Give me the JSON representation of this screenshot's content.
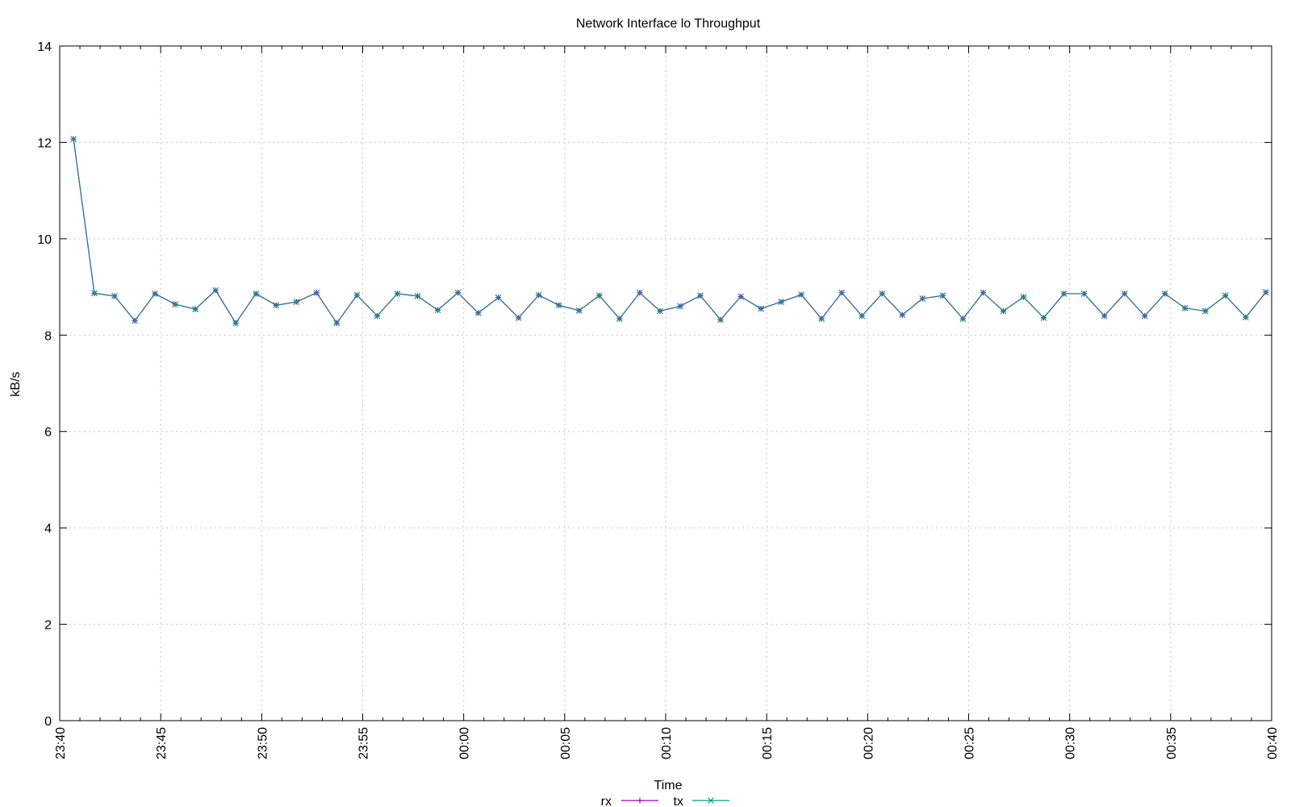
{
  "chart_data": {
    "type": "line",
    "title": "Network Interface lo Throughput",
    "xlabel": "Time",
    "ylabel": "kB/s",
    "ylim": [
      0,
      14
    ],
    "yticks": [
      0,
      2,
      4,
      6,
      8,
      10,
      12,
      14
    ],
    "x_ticks": [
      "23:40",
      "23:45",
      "23:50",
      "23:55",
      "00:00",
      "00:05",
      "00:10",
      "00:15",
      "00:20",
      "00:25",
      "00:30",
      "00:35",
      "00:40"
    ],
    "x_start": "23:40",
    "x_end": "00:40",
    "grid": true,
    "legend": "bottom-center",
    "x": [
      "23:40:41",
      "23:41:43",
      "23:42:43",
      "23:43:43",
      "23:44:43",
      "23:45:43",
      "23:46:43",
      "23:47:43",
      "23:48:43",
      "23:49:43",
      "23:50:43",
      "23:51:43",
      "23:52:43",
      "23:53:43",
      "23:54:43",
      "23:55:43",
      "23:56:43",
      "23:57:43",
      "23:58:43",
      "23:59:43",
      "00:00:43",
      "00:01:43",
      "00:02:43",
      "00:03:43",
      "00:04:43",
      "00:05:43",
      "00:06:43",
      "00:07:43",
      "00:08:43",
      "00:09:43",
      "00:10:43",
      "00:11:43",
      "00:12:43",
      "00:13:43",
      "00:14:43",
      "00:15:43",
      "00:16:43",
      "00:17:43",
      "00:18:43",
      "00:19:43",
      "00:20:43",
      "00:21:43",
      "00:22:43",
      "00:23:43",
      "00:24:43",
      "00:25:43",
      "00:26:43",
      "00:27:43",
      "00:28:43",
      "00:29:43",
      "00:30:43",
      "00:31:43",
      "00:32:43",
      "00:33:43",
      "00:34:43",
      "00:35:43",
      "00:36:43",
      "00:37:43",
      "00:38:43",
      "00:39:43"
    ],
    "series": [
      {
        "name": "rx",
        "color": "#9400d3",
        "marker": "+",
        "values": [
          12.07,
          8.87,
          8.81,
          8.3,
          8.86,
          8.64,
          8.54,
          8.93,
          8.25,
          8.86,
          8.62,
          8.69,
          8.88,
          8.25,
          8.83,
          8.4,
          8.86,
          8.81,
          8.52,
          8.88,
          8.46,
          8.78,
          8.36,
          8.83,
          8.62,
          8.51,
          8.82,
          8.34,
          8.88,
          8.5,
          8.6,
          8.82,
          8.32,
          8.8,
          8.55,
          8.69,
          8.84,
          8.34,
          8.88,
          8.4,
          8.86,
          8.42,
          8.76,
          8.82,
          8.34,
          8.88,
          8.5,
          8.79,
          8.36,
          8.86,
          8.86,
          8.4,
          8.86,
          8.4,
          8.86,
          8.56,
          8.5,
          8.82,
          8.37,
          8.89
        ]
      },
      {
        "name": "tx",
        "color": "#009e73",
        "marker": "x",
        "values": [
          12.07,
          8.87,
          8.81,
          8.3,
          8.86,
          8.64,
          8.54,
          8.93,
          8.25,
          8.86,
          8.62,
          8.69,
          8.88,
          8.25,
          8.83,
          8.4,
          8.86,
          8.81,
          8.52,
          8.88,
          8.46,
          8.78,
          8.36,
          8.83,
          8.62,
          8.51,
          8.82,
          8.34,
          8.88,
          8.5,
          8.6,
          8.82,
          8.32,
          8.8,
          8.55,
          8.69,
          8.84,
          8.34,
          8.88,
          8.4,
          8.86,
          8.42,
          8.76,
          8.82,
          8.34,
          8.88,
          8.5,
          8.79,
          8.36,
          8.86,
          8.86,
          8.4,
          8.86,
          8.4,
          8.86,
          8.56,
          8.5,
          8.82,
          8.37,
          8.89
        ]
      }
    ]
  }
}
